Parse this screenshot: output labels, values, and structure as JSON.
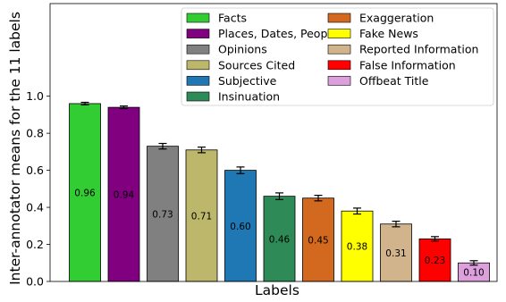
{
  "chart_data": {
    "type": "bar",
    "ylabel": "Inter-annotator means for the 11 labels",
    "xlabel": "Labels",
    "ylim": [
      0,
      1.5
    ],
    "yticks": [
      "0.0",
      "0.2",
      "0.4",
      "0.6",
      "0.8",
      "1.0"
    ],
    "grid": false,
    "legend_position": "top-right",
    "bars": [
      {
        "name": "Facts",
        "value": 0.96,
        "label": "0.96",
        "error": 0.007,
        "color": "#32cd32"
      },
      {
        "name": "Places, Dates, People",
        "value": 0.94,
        "label": "0.94",
        "error": 0.007,
        "color": "#800080"
      },
      {
        "name": "Opinions",
        "value": 0.73,
        "label": "0.73",
        "error": 0.015,
        "color": "#808080"
      },
      {
        "name": "Sources Cited",
        "value": 0.71,
        "label": "0.71",
        "error": 0.015,
        "color": "#bdb76b"
      },
      {
        "name": "Subjective",
        "value": 0.6,
        "label": "0.60",
        "error": 0.018,
        "color": "#1f77b4"
      },
      {
        "name": "Insinuation",
        "value": 0.46,
        "label": "0.46",
        "error": 0.018,
        "color": "#2e8b57"
      },
      {
        "name": "Exaggeration",
        "value": 0.45,
        "label": "0.45",
        "error": 0.015,
        "color": "#d2691e"
      },
      {
        "name": "Fake News",
        "value": 0.38,
        "label": "0.38",
        "error": 0.016,
        "color": "#ffff00"
      },
      {
        "name": "Reported Information",
        "value": 0.31,
        "label": "0.31",
        "error": 0.015,
        "color": "#d2b48c"
      },
      {
        "name": "False Information",
        "value": 0.23,
        "label": "0.23",
        "error": 0.012,
        "color": "#ff0000"
      },
      {
        "name": "Offbeat Title",
        "value": 0.1,
        "label": "0.10",
        "error": 0.012,
        "color": "#dda0dd"
      }
    ]
  }
}
